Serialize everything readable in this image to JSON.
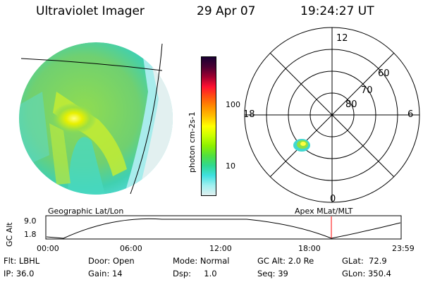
{
  "header": {
    "instrument": "Ultraviolet Imager",
    "date": "29 Apr 07",
    "time": "19:24:27 UT"
  },
  "colorbar": {
    "label": "photon cm-2s-1",
    "ticks": [
      "100",
      "10"
    ],
    "colors": [
      "#1a0033",
      "#4b0033",
      "#a00030",
      "#ff1030",
      "#ff5010",
      "#ff8c00",
      "#ffc000",
      "#ffff00",
      "#c8ff00",
      "#8cf000",
      "#50e040",
      "#30d890",
      "#40e0e0",
      "#a0f0f0",
      "#e0f0f0"
    ]
  },
  "polar": {
    "hour_labels": {
      "top": "12",
      "left": "18",
      "right": "6",
      "bottom": "0"
    },
    "lat_labels": [
      "60",
      "70",
      "80"
    ]
  },
  "labels": {
    "geographic": "Geographic Lat/Lon",
    "apex": "Apex MLat/MLT"
  },
  "timeline": {
    "axis_label": "GC Alt",
    "y_ticks": [
      "9.0",
      "1.8"
    ],
    "x_ticks": [
      "00:00",
      "06:00",
      "12:00",
      "18:00",
      "23:59"
    ],
    "marker_color": "#ff0000"
  },
  "footer": {
    "filter": "Flt: LBHL",
    "ip": "IP: 36.0",
    "door": "Door: Open",
    "gain": "Gain: 14",
    "mode": "Mode: Normal",
    "dsp": "Dsp:     1.0",
    "gc_alt": "GC Alt: 2.0 Re",
    "seq": "Seq: 39",
    "glat": "GLat:  72.9",
    "glon": "GLon: 350.4"
  }
}
